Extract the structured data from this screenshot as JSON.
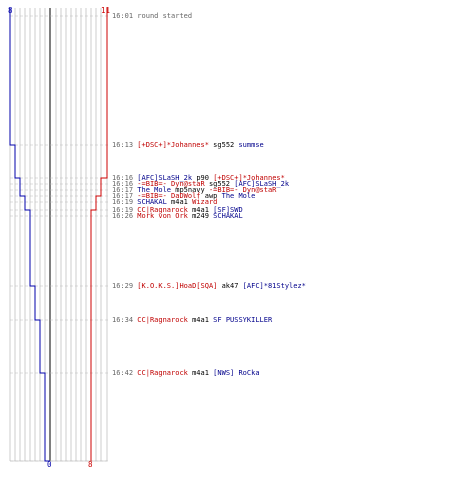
{
  "colors": {
    "team_blue": "#0000aa",
    "team_red": "#cc0000",
    "time_text": "#666666",
    "weapon_text": "#000000",
    "grid": "#aaaaaa",
    "center_line": "#555555"
  },
  "score_axis": {
    "blue_start_label": "8",
    "red_start_label": "11",
    "blue_end_label": "0",
    "red_end_label": "8",
    "max_players": 11
  },
  "blue_steps": [
    {
      "at": "16:13",
      "count": 7
    },
    {
      "at": "16:16",
      "count": 6
    },
    {
      "at": "16:17",
      "count": 5
    },
    {
      "at": "16:19",
      "count": 4
    },
    {
      "at": "16:26",
      "count": 3
    },
    {
      "at": "16:29",
      "count": 2
    },
    {
      "at": "16:34",
      "count": 1
    },
    {
      "at": "16:42",
      "count": 0
    }
  ],
  "red_steps": [
    {
      "at": "16:16",
      "count": 10
    },
    {
      "at": "16:17",
      "count": 9
    },
    {
      "at": "16:19",
      "count": 8
    }
  ],
  "events": [
    {
      "time": "16:01",
      "killer": "",
      "killer_team": "",
      "weapon": "round started",
      "victim": "",
      "victim_team": ""
    },
    {
      "time": "16:13",
      "killer": "[+DSC+]*Johannes*",
      "killer_team": "red",
      "weapon": "sg552",
      "victim": "summse",
      "victim_team": "blue"
    },
    {
      "time": "16:16",
      "killer": "[AFC]SLaSH_2k",
      "killer_team": "blue",
      "weapon": "p90",
      "victim": "[+DSC+]*Johannes*",
      "victim_team": "red"
    },
    {
      "time": "16:16",
      "killer": "-=BIB=- Dyn@staR",
      "killer_team": "red",
      "weapon": "sg552",
      "victim": "[AFC]SLaSH_2k",
      "victim_team": "blue"
    },
    {
      "time": "16:17",
      "killer": "The Mole",
      "killer_team": "blue",
      "weapon": "mp5navy",
      "victim": "-=BIB=- Dyn@staR",
      "victim_team": "red"
    },
    {
      "time": "16:17",
      "killer": "-=BIB=- DaDWolf",
      "killer_team": "red",
      "weapon": "awp",
      "victim": "The Mole",
      "victim_team": "blue"
    },
    {
      "time": "16:19",
      "killer": "SCHAKAL",
      "killer_team": "blue",
      "weapon": "m4a1",
      "victim": "Wizard",
      "victim_team": "red"
    },
    {
      "time": "16:19",
      "killer": "CC|Ragnarock",
      "killer_team": "red",
      "weapon": "m4a1",
      "victim": "[SF]SWD",
      "victim_team": "blue"
    },
    {
      "time": "16:26",
      "killer": "Mork von Ork",
      "killer_team": "red",
      "weapon": "m249",
      "victim": "SCHAKAL",
      "victim_team": "blue"
    },
    {
      "time": "16:29",
      "killer": "[K.O.K.S.]HoaD[SQA]",
      "killer_team": "red",
      "weapon": "ak47",
      "victim": "[AFC]*81Stylez*",
      "victim_team": "blue"
    },
    {
      "time": "16:34",
      "killer": "CC|Ragnarock",
      "killer_team": "red",
      "weapon": "m4a1",
      "victim": "SF PUSSYKILLER",
      "victim_team": "blue"
    },
    {
      "time": "16:42",
      "killer": "CC|Ragnarock",
      "killer_team": "red",
      "weapon": "m4a1",
      "victim": "[NWS] RoCka",
      "victim_team": "blue"
    }
  ]
}
